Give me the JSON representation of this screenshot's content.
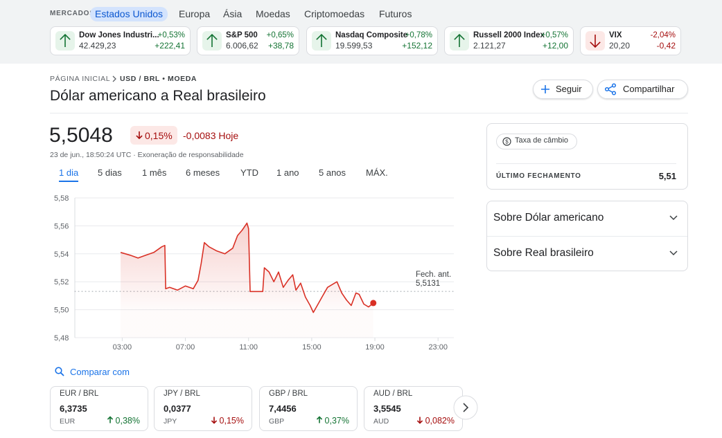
{
  "markets": {
    "label": "MERCADOS",
    "tabs": [
      "Estados Unidos",
      "Europa",
      "Ásia",
      "Moedas",
      "Criptomoedas",
      "Futuros"
    ],
    "active_tab": 0
  },
  "tickers": [
    {
      "name": "Dow Jones Industri...",
      "price": "42.429,23",
      "change_pct": "+0,53%",
      "change": "+222,41",
      "direction": "up"
    },
    {
      "name": "S&P 500",
      "price": "6.006,62",
      "change_pct": "+0,65%",
      "change": "+38,78",
      "direction": "up"
    },
    {
      "name": "Nasdaq Composite",
      "price": "19.599,53",
      "change_pct": "+0,78%",
      "change": "+152,12",
      "direction": "up"
    },
    {
      "name": "Russell 2000 Index",
      "price": "2.121,27",
      "change_pct": "+0,57%",
      "change": "+12,00",
      "direction": "up"
    },
    {
      "name": "VIX",
      "price": "20,20",
      "change_pct": "-2,04%",
      "change": "-0,42",
      "direction": "down"
    }
  ],
  "breadcrumb": [
    "PÁGINA INICIAL",
    "USD / BRL • MOEDA"
  ],
  "header": {
    "title": "Dólar americano a Real brasileiro",
    "follow": "Seguir",
    "share": "Compartilhar"
  },
  "quote": {
    "price": "5,5048",
    "change_pct": "0,15%",
    "change": "-0,0083 Hoje",
    "direction": "down",
    "timestamp": "23 de jun., 18:50:24 UTC · Exoneração de responsabilidade"
  },
  "ranges": [
    "1 dia",
    "5 dias",
    "1 mês",
    "6 meses",
    "YTD",
    "1 ano",
    "5 anos",
    "MÁX."
  ],
  "active_range": 0,
  "chart_data": {
    "type": "line",
    "color": "#d93025",
    "x": [
      2.9,
      3.5,
      4.0,
      4.5,
      5.0,
      5.5,
      5.7,
      5.75,
      6.0,
      6.5,
      7.0,
      7.5,
      7.8,
      8.0,
      8.2,
      8.5,
      9.0,
      9.5,
      10.0,
      10.3,
      10.6,
      10.9,
      11.0,
      11.1,
      11.5,
      11.9,
      12.0,
      12.3,
      12.6,
      12.9,
      13.2,
      13.5,
      13.8,
      14.0,
      14.3,
      14.6,
      14.9,
      15.1,
      15.4,
      15.7,
      16.0,
      16.3,
      16.6,
      16.9,
      17.2,
      17.5,
      17.8,
      18.0,
      18.3,
      18.6,
      18.9
    ],
    "values": [
      5.541,
      5.539,
      5.537,
      5.539,
      5.541,
      5.545,
      5.546,
      5.515,
      5.516,
      5.514,
      5.517,
      5.515,
      5.521,
      5.533,
      5.548,
      5.545,
      5.542,
      5.54,
      5.544,
      5.553,
      5.557,
      5.562,
      5.558,
      5.513,
      5.513,
      5.513,
      5.53,
      5.527,
      5.52,
      5.527,
      5.516,
      5.521,
      5.525,
      5.514,
      5.519,
      5.509,
      5.503,
      5.498,
      5.504,
      5.51,
      5.516,
      5.518,
      5.52,
      5.512,
      5.507,
      5.503,
      5.512,
      5.511,
      5.504,
      5.502,
      5.5048
    ],
    "xlim": [
      0,
      24
    ],
    "xticks": [
      {
        "value": 3,
        "label": "03:00"
      },
      {
        "value": 7,
        "label": "07:00"
      },
      {
        "value": 11,
        "label": "11:00"
      },
      {
        "value": 15,
        "label": "15:00"
      },
      {
        "value": 19,
        "label": "19:00"
      },
      {
        "value": 23,
        "label": "23:00"
      }
    ],
    "ylim": [
      5.48,
      5.58
    ],
    "yticks": [
      {
        "value": 5.48,
        "label": "5,48"
      },
      {
        "value": 5.5,
        "label": "5,50"
      },
      {
        "value": 5.52,
        "label": "5,52"
      },
      {
        "value": 5.54,
        "label": "5,54"
      },
      {
        "value": 5.56,
        "label": "5,56"
      },
      {
        "value": 5.58,
        "label": "5,58"
      }
    ],
    "grid": true,
    "previous_close": {
      "label": "Fech. ant.",
      "value": 5.5131,
      "value_label": "5,5131"
    }
  },
  "side": {
    "chip": "Taxa de câmbio",
    "last_close_label": "ÚLTIMO FECHAMENTO",
    "last_close": "5,51",
    "about": [
      "Sobre Dólar americano",
      "Sobre Real brasileiro"
    ]
  },
  "compare": {
    "label": "Comparar com",
    "cards": [
      {
        "pair": "EUR / BRL",
        "price": "6,3735",
        "code": "EUR",
        "change": "0,38%",
        "direction": "up"
      },
      {
        "pair": "JPY / BRL",
        "price": "0,0377",
        "code": "JPY",
        "change": "0,15%",
        "direction": "down"
      },
      {
        "pair": "GBP / BRL",
        "price": "7,4456",
        "code": "GBP",
        "change": "0,37%",
        "direction": "up"
      },
      {
        "pair": "AUD / BRL",
        "price": "3,5545",
        "code": "AUD",
        "change": "0,082%",
        "direction": "down"
      }
    ]
  }
}
